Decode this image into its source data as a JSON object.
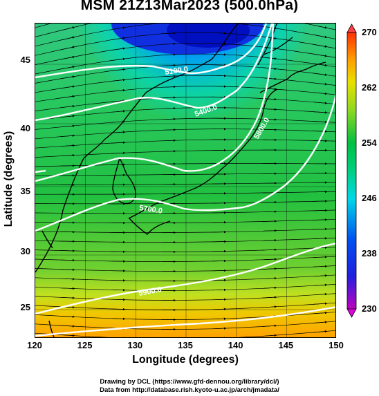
{
  "title": "MSM 21Z13Mar2023 (500.0hPa)",
  "xlabel": "Longitude (degrees)",
  "ylabel": "Latitude  (degrees)",
  "x_ticks": [
    "120",
    "125",
    "130",
    "135",
    "140",
    "145",
    "150"
  ],
  "y_ticks": [
    "25",
    "30",
    "35",
    "40",
    "45"
  ],
  "colorbar": {
    "ticks": [
      "270",
      "262",
      "254",
      "246",
      "238",
      "230"
    ],
    "colors": [
      "#c000c0",
      "#2020e0",
      "#00a0f0",
      "#00d8c0",
      "#00c850",
      "#60d020",
      "#c8e000",
      "#f0d000",
      "#ff9000",
      "#ff3000"
    ]
  },
  "contour_labels": [
    "5100.0",
    "5400.0",
    "5700.0",
    "5800.0",
    "5900.0"
  ],
  "credits": {
    "line1": "Drawing by DCL (https://www.gfd-dennou.org/library/dcl/)",
    "line2": "Data from http://database.rish.kyoto-u.ac.jp/arch/jmadata/"
  }
}
